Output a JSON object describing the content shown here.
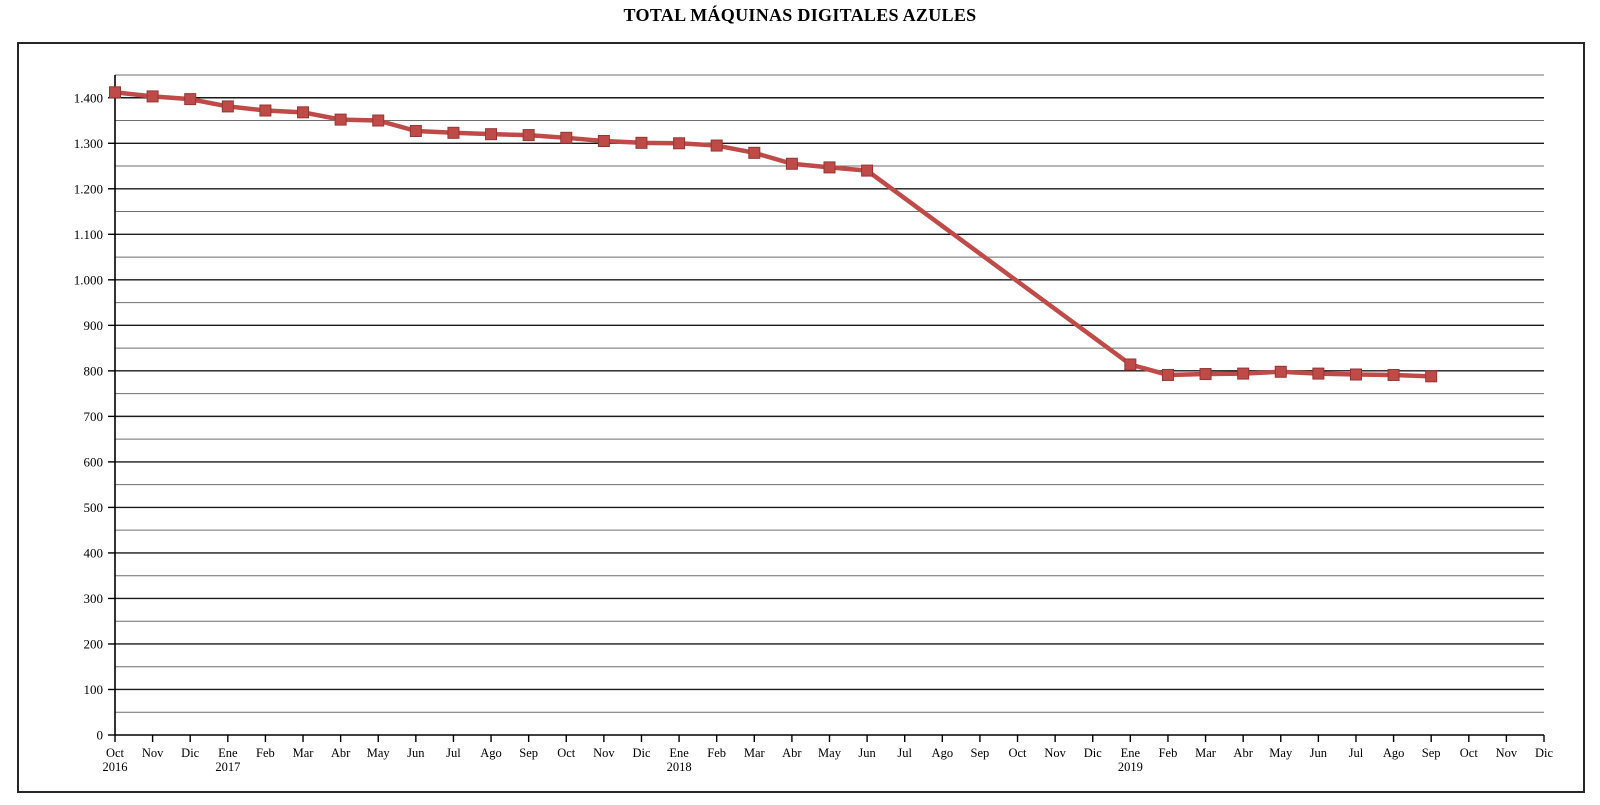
{
  "title": "TOTAL MÁQUINAS DIGITALES AZULES",
  "chart_data": {
    "type": "line",
    "title": "TOTAL MÁQUINAS DIGITALES AZULES",
    "xlabel": "",
    "ylabel": "",
    "ylim": [
      0,
      1450
    ],
    "y_major_step": 100,
    "y_minor_step": 50,
    "grid": "on",
    "legend": "none",
    "y_tick_labels": [
      "0",
      "100",
      "200",
      "300",
      "400",
      "500",
      "600",
      "700",
      "800",
      "900",
      "1.000",
      "1.100",
      "1.200",
      "1.300",
      "1.400"
    ],
    "categories": [
      {
        "month": "Oct",
        "year": "2016"
      },
      {
        "month": "Nov"
      },
      {
        "month": "Dic"
      },
      {
        "month": "Ene",
        "year": "2017"
      },
      {
        "month": "Feb"
      },
      {
        "month": "Mar"
      },
      {
        "month": "Abr"
      },
      {
        "month": "May"
      },
      {
        "month": "Jun"
      },
      {
        "month": "Jul"
      },
      {
        "month": "Ago"
      },
      {
        "month": "Sep"
      },
      {
        "month": "Oct"
      },
      {
        "month": "Nov"
      },
      {
        "month": "Dic"
      },
      {
        "month": "Ene",
        "year": "2018"
      },
      {
        "month": "Feb"
      },
      {
        "month": "Mar"
      },
      {
        "month": "Abr"
      },
      {
        "month": "May"
      },
      {
        "month": "Jun"
      },
      {
        "month": "Jul"
      },
      {
        "month": "Ago"
      },
      {
        "month": "Sep"
      },
      {
        "month": "Oct"
      },
      {
        "month": "Nov"
      },
      {
        "month": "Dic"
      },
      {
        "month": "Ene",
        "year": "2019"
      },
      {
        "month": "Feb"
      },
      {
        "month": "Mar"
      },
      {
        "month": "Abr"
      },
      {
        "month": "May"
      },
      {
        "month": "Jun"
      },
      {
        "month": "Jul"
      },
      {
        "month": "Ago"
      },
      {
        "month": "Sep"
      },
      {
        "month": "Oct"
      },
      {
        "month": "Nov"
      },
      {
        "month": "Dic"
      }
    ],
    "series": [
      {
        "name": "Total máquinas digitales azules",
        "color": "#BE4B48",
        "marker": "square",
        "marker_border_color": "#943634",
        "values": [
          1412,
          1403,
          1397,
          1381,
          1372,
          1368,
          1352,
          1350,
          1327,
          1323,
          1320,
          1318,
          1312,
          1305,
          1301,
          1300,
          1295,
          1279,
          1255,
          1247,
          1240,
          null,
          null,
          null,
          null,
          null,
          null,
          814,
          791,
          793,
          794,
          798,
          794,
          792,
          791,
          788,
          null,
          null,
          null
        ]
      }
    ],
    "colors": {
      "major_gridline": "#1a1a1a",
      "minor_gridline": "#6e6e6e",
      "axis": "#000000",
      "chart_border": "#262626",
      "background": "#ffffff"
    }
  }
}
